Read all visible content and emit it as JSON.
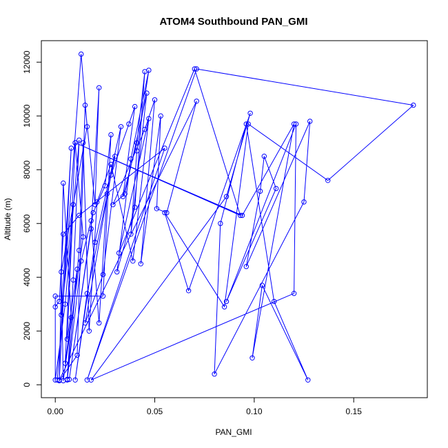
{
  "chart_data": {
    "type": "line",
    "title": "ATOM4 Southbound PAN_GMI",
    "xlabel": "PAN_GMI",
    "ylabel": "Altitude (m)",
    "xlim": [
      -0.007,
      0.187
    ],
    "ylim": [
      -480,
      12800
    ],
    "xticks": [
      0.0,
      0.05,
      0.1,
      0.15
    ],
    "xtick_labels": [
      "0.00",
      "0.05",
      "0.10",
      "0.15"
    ],
    "yticks": [
      0,
      2000,
      4000,
      6000,
      8000,
      10000,
      12000
    ],
    "ytick_labels": [
      "0",
      "2000",
      "4000",
      "6000",
      "8000",
      "10000",
      "12000"
    ],
    "grid": false,
    "marker": "open-circle",
    "color": "#0000ff",
    "series": [
      {
        "points": [
          [
            0.001,
            180
          ],
          [
            0.013,
            12300
          ],
          [
            0.016,
            9600
          ],
          [
            0.003,
            4200
          ],
          [
            0.004,
            150
          ],
          [
            0.014,
            5500
          ],
          [
            0.01,
            9000
          ],
          [
            0.005,
            800
          ],
          [
            0.008,
            2500
          ],
          [
            0.004,
            7500
          ],
          [
            0.002,
            150
          ],
          [
            0.011,
            1100
          ],
          [
            0.015,
            10400
          ],
          [
            0.02,
            6700
          ],
          [
            0.022,
            11050
          ],
          [
            0.018,
            5800
          ],
          [
            0.007,
            200
          ],
          [
            0.019,
            6400
          ],
          [
            0.025,
            7400
          ],
          [
            0.028,
            9300
          ],
          [
            0.024,
            3300
          ],
          [
            0.0,
            3300
          ],
          [
            0.0,
            180
          ],
          [
            0.005,
            3000
          ],
          [
            0.012,
            9100
          ],
          [
            0.009,
            3900
          ],
          [
            0.006,
            180
          ],
          [
            0.013,
            4600
          ],
          [
            0.018,
            6100
          ],
          [
            0.022,
            2300
          ],
          [
            0.026,
            7100
          ],
          [
            0.03,
            8500
          ],
          [
            0.016,
            3400
          ],
          [
            0.01,
            180
          ],
          [
            0.02,
            5300
          ],
          [
            0.033,
            9600
          ],
          [
            0.024,
            4100
          ],
          [
            0.015,
            2300
          ],
          [
            0.028,
            7800
          ],
          [
            0.037,
            9700
          ],
          [
            0.04,
            10350
          ],
          [
            0.034,
            7000
          ],
          [
            0.041,
            9000
          ],
          [
            0.045,
            11650
          ],
          [
            0.04,
            6600
          ],
          [
            0.031,
            4200
          ],
          [
            0.038,
            8400
          ],
          [
            0.047,
            11700
          ],
          [
            0.041,
            8700
          ],
          [
            0.038,
            5600
          ],
          [
            0.046,
            10850
          ],
          [
            0.035,
            7100
          ],
          [
            0.029,
            6700
          ],
          [
            0.045,
            9500
          ],
          [
            0.05,
            10600
          ],
          [
            0.043,
            4500
          ],
          [
            0.053,
            10000
          ],
          [
            0.051,
            6550
          ],
          [
            0.056,
            6400
          ],
          [
            0.071,
            10550
          ],
          [
            0.002,
            180
          ],
          [
            0.008,
            8800
          ],
          [
            0.003,
            2600
          ],
          [
            0.009,
            6700
          ],
          [
            0.006,
            1700
          ],
          [
            0.011,
            4300
          ],
          [
            0.006,
            200
          ],
          [
            0.012,
            5000
          ],
          [
            0.014,
            9000
          ],
          [
            0.017,
            2000
          ],
          [
            0.021,
            6800
          ],
          [
            0.028,
            8200
          ],
          [
            0.039,
            4600
          ],
          [
            0.047,
            9900
          ],
          [
            0.032,
            4900
          ],
          [
            0.07,
            11750
          ],
          [
            0.093,
            6300
          ],
          [
            0.01,
            9000
          ],
          [
            0.094,
            6300
          ],
          [
            0.12,
            9700
          ],
          [
            0.099,
            1000
          ],
          [
            0.104,
            3700
          ],
          [
            0.127,
            180
          ],
          [
            0.11,
            3100
          ],
          [
            0.096,
            9700
          ],
          [
            0.083,
            6000
          ],
          [
            0.08,
            400
          ],
          [
            0.125,
            6800
          ],
          [
            0.128,
            9800
          ],
          [
            0.096,
            4400
          ],
          [
            0.103,
            7200
          ],
          [
            0.105,
            8500
          ],
          [
            0.111,
            7300
          ],
          [
            0.086,
            3100
          ],
          [
            0.121,
            9700
          ],
          [
            0.12,
            3400
          ],
          [
            0.018,
            180
          ],
          [
            0.086,
            7000
          ],
          [
            0.098,
            10100
          ],
          [
            0.067,
            3500
          ],
          [
            0.055,
            6400
          ],
          [
            0.085,
            2900
          ],
          [
            0.097,
            9700
          ],
          [
            0.137,
            7600
          ],
          [
            0.18,
            10400
          ],
          [
            0.071,
            11750
          ],
          [
            0.016,
            180
          ],
          [
            0.055,
            8800
          ],
          [
            0.012,
            6300
          ],
          [
            0.004,
            5600
          ],
          [
            0.002,
            3100
          ],
          [
            0.0,
            2900
          ]
        ]
      }
    ]
  }
}
